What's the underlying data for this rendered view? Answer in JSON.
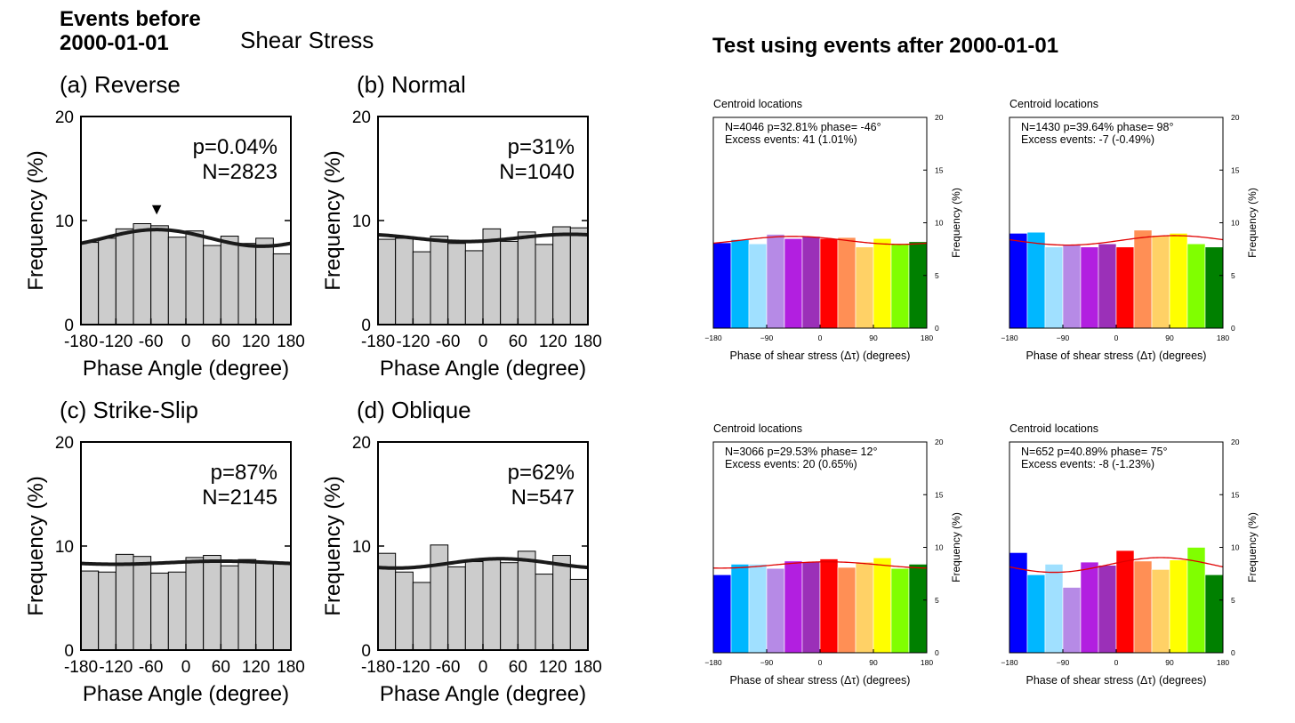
{
  "left_panel": {
    "heading_line1": "Events before",
    "heading_line2": "2000-01-01",
    "subheading": "Shear Stress"
  },
  "right_panel": {
    "heading": "Test using events after 2000-01-01"
  },
  "colors": {
    "gray_bar": "#cccccc",
    "fit_line_left": "#1a1a1a",
    "fit_line_right": "#e00000",
    "bin_palette": [
      "#0000ff",
      "#00b7ff",
      "#a0e0ff",
      "#b68ae6",
      "#b21fe0",
      "#9b30b8",
      "#ff0000",
      "#ff8f55",
      "#ffd166",
      "#ffff00",
      "#80ff00",
      "#008000"
    ]
  },
  "chart_data": [
    {
      "type": "bar",
      "panel_label": "(a) Reverse",
      "annotation_p": "p=0.04%",
      "annotation_n": "N=2823",
      "marker": "▼",
      "marker_x": -50,
      "xlabel": "Phase Angle (degree)",
      "ylabel": "Frequency (%)",
      "xlim": [
        -180,
        180
      ],
      "ylim": [
        0,
        20
      ],
      "xticks": [
        "-180",
        "-120",
        "-60",
        "0",
        "60",
        "120",
        "180"
      ],
      "yticks": [
        "0",
        "10",
        "20"
      ],
      "values": [
        7.9,
        8.3,
        9.2,
        9.7,
        9.5,
        8.4,
        9.0,
        7.6,
        8.5,
        7.8,
        8.3,
        6.8
      ],
      "fit_curve": {
        "mean": 8.33,
        "amplitude": 0.8,
        "phase_deg": -50
      }
    },
    {
      "type": "bar",
      "panel_label": "(b) Normal",
      "annotation_p": "p=31%",
      "annotation_n": "N=1040",
      "xlabel": "Phase Angle (degree)",
      "ylabel": "Frequency (%)",
      "xlim": [
        -180,
        180
      ],
      "ylim": [
        0,
        20
      ],
      "xticks": [
        "-180",
        "-120",
        "-60",
        "0",
        "60",
        "120",
        "180"
      ],
      "yticks": [
        "0",
        "10",
        "20"
      ],
      "values": [
        8.2,
        8.3,
        7.0,
        8.5,
        7.8,
        7.1,
        9.2,
        8.0,
        8.9,
        7.7,
        9.4,
        9.3
      ],
      "fit_curve": {
        "mean": 8.33,
        "amplitude": 0.35,
        "phase_deg": 150
      }
    },
    {
      "type": "bar",
      "panel_label": "(c) Strike-Slip",
      "annotation_p": "p=87%",
      "annotation_n": "N=2145",
      "xlabel": "Phase Angle (degree)",
      "ylabel": "Frequency (%)",
      "xlim": [
        -180,
        180
      ],
      "ylim": [
        0,
        20
      ],
      "xticks": [
        "-180",
        "-120",
        "-60",
        "0",
        "60",
        "120",
        "180"
      ],
      "yticks": [
        "0",
        "10",
        "20"
      ],
      "values": [
        7.6,
        7.5,
        9.2,
        9.0,
        7.4,
        7.5,
        8.9,
        9.1,
        8.1,
        8.7,
        8.4,
        8.3
      ],
      "fit_curve": {
        "mean": 8.4,
        "amplitude": 0.15,
        "phase_deg": 60
      }
    },
    {
      "type": "bar",
      "panel_label": "(d) Oblique",
      "annotation_p": "p=62%",
      "annotation_n": "N=547",
      "xlabel": "Phase Angle (degree)",
      "ylabel": "Frequency (%)",
      "xlim": [
        -180,
        180
      ],
      "ylim": [
        0,
        20
      ],
      "xticks": [
        "-180",
        "-120",
        "-60",
        "0",
        "60",
        "120",
        "180"
      ],
      "yticks": [
        "0",
        "10",
        "20"
      ],
      "values": [
        9.3,
        7.5,
        6.5,
        10.1,
        8.0,
        8.5,
        8.7,
        8.4,
        9.5,
        7.3,
        9.1,
        6.8
      ],
      "fit_curve": {
        "mean": 8.33,
        "amplitude": 0.45,
        "phase_deg": 30
      }
    },
    {
      "type": "bar",
      "title": "Centroid locations",
      "stats_line1": "N=4046   p=32.81%   phase= -46°",
      "stats_line2": "Excess events: 41 (1.01%)",
      "xlabel": "Phase of shear stress (Δτ) (degrees)",
      "ylabel": "Frequency (%)",
      "xlim": [
        -180,
        180
      ],
      "ylim": [
        0,
        20
      ],
      "xticks": [
        "−180",
        "−90",
        "0",
        "90",
        "180"
      ],
      "yticks": [
        "0",
        "5",
        "10",
        "15",
        "20"
      ],
      "values": [
        8.1,
        8.4,
        8.0,
        8.9,
        8.5,
        8.7,
        8.5,
        8.6,
        7.7,
        8.5,
        8.0,
        8.2
      ],
      "fit_curve": {
        "mean": 8.33,
        "amplitude": 0.38,
        "phase_deg": -46
      }
    },
    {
      "type": "bar",
      "title": "Centroid locations",
      "stats_line1": "N=1430   p=39.64%   phase= 98°",
      "stats_line2": "Excess events: -7 (-0.49%)",
      "xlabel": "Phase of shear stress (Δτ) (degrees)",
      "ylabel": "Frequency (%)",
      "xlim": [
        -180,
        180
      ],
      "ylim": [
        0,
        20
      ],
      "xticks": [
        "−180",
        "−90",
        "0",
        "90",
        "180"
      ],
      "yticks": [
        "0",
        "5",
        "10",
        "15",
        "20"
      ],
      "values": [
        9.0,
        9.1,
        7.7,
        7.9,
        7.7,
        8.0,
        7.7,
        9.3,
        8.8,
        9.0,
        8.0,
        7.7
      ],
      "fit_curve": {
        "mean": 8.33,
        "amplitude": 0.45,
        "phase_deg": 98
      }
    },
    {
      "type": "bar",
      "title": "Centroid locations",
      "stats_line1": "N=3066   p=29.53%   phase= 12°",
      "stats_line2": "Excess events: 20 (0.65%)",
      "xlabel": "Phase of shear stress (Δτ) (degrees)",
      "ylabel": "Frequency (%)",
      "xlim": [
        -180,
        180
      ],
      "ylim": [
        0,
        20
      ],
      "xticks": [
        "−180",
        "−90",
        "0",
        "90",
        "180"
      ],
      "yticks": [
        "0",
        "5",
        "10",
        "15",
        "20"
      ],
      "values": [
        7.4,
        8.4,
        8.4,
        8.0,
        8.7,
        8.6,
        8.9,
        8.1,
        8.6,
        9.0,
        8.0,
        8.4
      ],
      "fit_curve": {
        "mean": 8.33,
        "amplitude": 0.3,
        "phase_deg": 12
      }
    },
    {
      "type": "bar",
      "title": "Centroid locations",
      "stats_line1": "N=652   p=40.89%   phase= 75°",
      "stats_line2": "Excess events: -8 (-1.23%)",
      "xlabel": "Phase of shear stress (Δτ) (degrees)",
      "ylabel": "Frequency (%)",
      "xlim": [
        -180,
        180
      ],
      "ylim": [
        0,
        20
      ],
      "xticks": [
        "−180",
        "−90",
        "0",
        "90",
        "180"
      ],
      "yticks": [
        "0",
        "5",
        "10",
        "15",
        "20"
      ],
      "values": [
        9.5,
        7.4,
        8.4,
        6.2,
        8.6,
        8.3,
        9.7,
        8.7,
        7.9,
        8.8,
        10.0,
        7.4
      ],
      "fit_curve": {
        "mean": 8.33,
        "amplitude": 0.7,
        "phase_deg": 75
      }
    }
  ]
}
